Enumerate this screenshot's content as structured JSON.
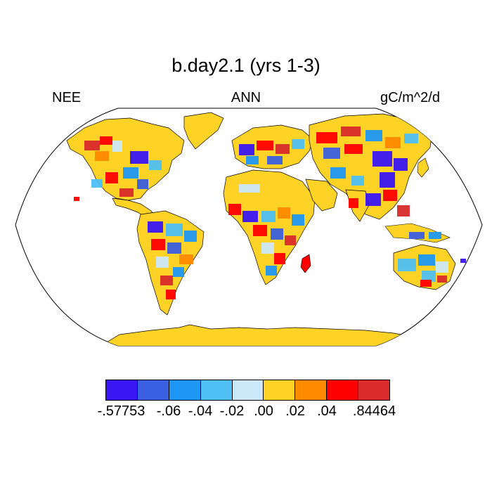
{
  "title": "b.day2.1 (yrs 1-3)",
  "left_label": "NEE",
  "center_label": "ANN",
  "right_label": "gC/m^2/d",
  "colorbar": {
    "colors": [
      "#3a16f5",
      "#3a5fe0",
      "#1e96f5",
      "#4fc0f4",
      "#cce8f8",
      "#ffd326",
      "#ff8a00",
      "#ff0000",
      "#d92b2b"
    ],
    "labels": [
      "-.57753",
      "-.06",
      "-.04",
      "-.02",
      ".00",
      ".02",
      ".04",
      ".84464"
    ]
  }
}
